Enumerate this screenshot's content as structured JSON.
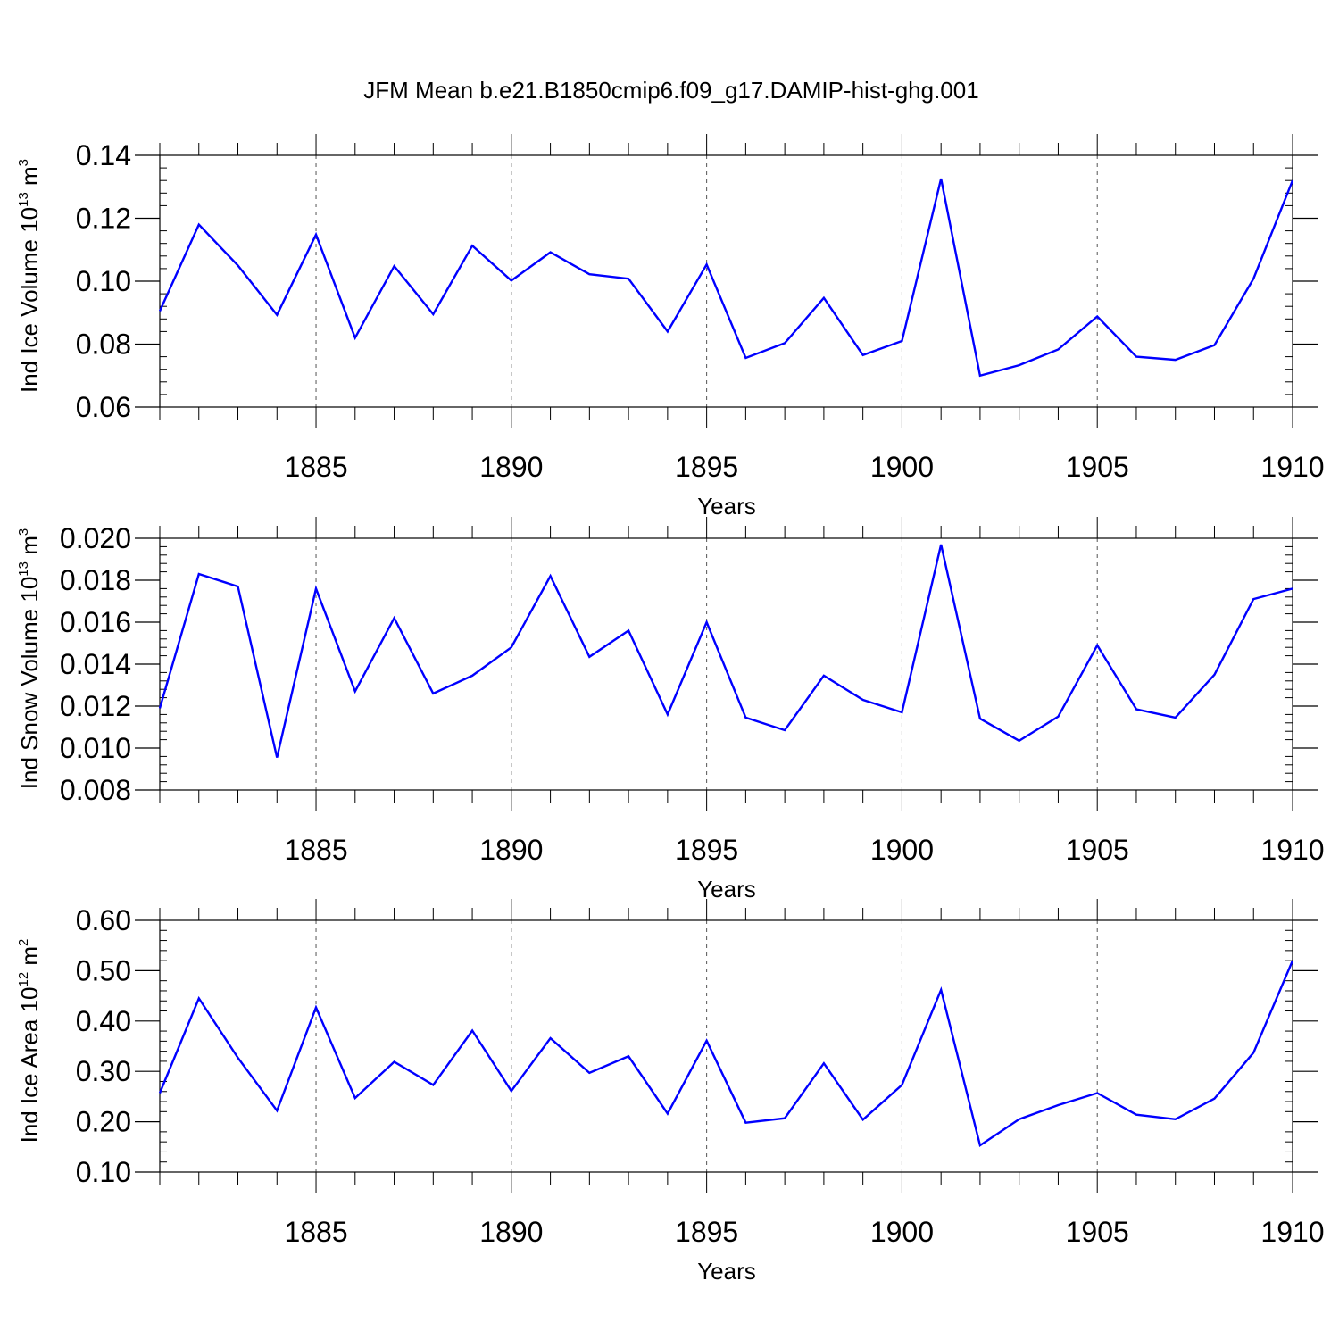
{
  "title": "JFM Mean b.e21.B1850cmip6.f09_g17.DAMIP-hist-ghg.001",
  "colors": {
    "line": "#0000ff",
    "axis": "#000000",
    "grid": "#555555"
  },
  "chart_data": [
    {
      "type": "line",
      "ylabel": {
        "text": "Ind Ice Volume 10",
        "exp": "13",
        "unit": " m",
        "unit_exp": "3"
      },
      "xlabel": "Years",
      "xlim": [
        1881,
        1910
      ],
      "ylim": [
        0.06,
        0.14
      ],
      "yticks": [
        0.06,
        0.08,
        0.1,
        0.12,
        0.14
      ],
      "ytick_labels": [
        "0.06",
        "0.08",
        "0.10",
        "0.12",
        "0.14"
      ],
      "xticks": [
        1885,
        1890,
        1895,
        1900,
        1905,
        1910
      ],
      "xtick_labels": [
        "1885",
        "1890",
        "1895",
        "1900",
        "1905",
        "1910"
      ],
      "series": [
        {
          "name": "Ind Ice Volume",
          "values": [
            [
              1881,
              0.0905
            ],
            [
              1882,
              0.118
            ],
            [
              1883,
              0.105
            ],
            [
              1884,
              0.0893
            ],
            [
              1885,
              0.1148
            ],
            [
              1886,
              0.082
            ],
            [
              1887,
              0.1048
            ],
            [
              1888,
              0.0895
            ],
            [
              1889,
              0.1113
            ],
            [
              1890,
              0.1002
            ],
            [
              1891,
              0.1092
            ],
            [
              1892,
              0.1022
            ],
            [
              1893,
              0.1008
            ],
            [
              1894,
              0.084
            ],
            [
              1895,
              0.1053
            ],
            [
              1896,
              0.0756
            ],
            [
              1897,
              0.0803
            ],
            [
              1898,
              0.0947
            ],
            [
              1899,
              0.0765
            ],
            [
              1900,
              0.081
            ],
            [
              1901,
              0.1326
            ],
            [
              1902,
              0.07
            ],
            [
              1903,
              0.0733
            ],
            [
              1904,
              0.0783
            ],
            [
              1905,
              0.0888
            ],
            [
              1906,
              0.076
            ],
            [
              1907,
              0.075
            ],
            [
              1908,
              0.0797
            ],
            [
              1909,
              0.1008
            ],
            [
              1910,
              0.132
            ]
          ]
        }
      ]
    },
    {
      "type": "line",
      "ylabel": {
        "text": "Ind Snow Volume 10",
        "exp": "13",
        "unit": " m",
        "unit_exp": "3"
      },
      "xlabel": "Years",
      "xlim": [
        1881,
        1910
      ],
      "ylim": [
        0.008,
        0.02
      ],
      "yticks": [
        0.008,
        0.01,
        0.012,
        0.014,
        0.016,
        0.018,
        0.02
      ],
      "ytick_labels": [
        "0.008",
        "0.010",
        "0.012",
        "0.014",
        "0.016",
        "0.018",
        "0.020"
      ],
      "xticks": [
        1885,
        1890,
        1895,
        1900,
        1905,
        1910
      ],
      "xtick_labels": [
        "1885",
        "1890",
        "1895",
        "1900",
        "1905",
        "1910"
      ],
      "series": [
        {
          "name": "Ind Snow Volume",
          "values": [
            [
              1881,
              0.0119
            ],
            [
              1882,
              0.0183
            ],
            [
              1883,
              0.0177
            ],
            [
              1884,
              0.00955
            ],
            [
              1885,
              0.0176
            ],
            [
              1886,
              0.0127
            ],
            [
              1887,
              0.0162
            ],
            [
              1888,
              0.0126
            ],
            [
              1889,
              0.01345
            ],
            [
              1890,
              0.0148
            ],
            [
              1891,
              0.0182
            ],
            [
              1892,
              0.01435
            ],
            [
              1893,
              0.0156
            ],
            [
              1894,
              0.0116
            ],
            [
              1895,
              0.016
            ],
            [
              1896,
              0.01145
            ],
            [
              1897,
              0.01085
            ],
            [
              1898,
              0.01345
            ],
            [
              1899,
              0.0123
            ],
            [
              1900,
              0.0117
            ],
            [
              1901,
              0.0197
            ],
            [
              1902,
              0.0114
            ],
            [
              1903,
              0.01035
            ],
            [
              1904,
              0.0115
            ],
            [
              1905,
              0.0149
            ],
            [
              1906,
              0.01185
            ],
            [
              1907,
              0.01145
            ],
            [
              1908,
              0.0135
            ],
            [
              1909,
              0.0171
            ],
            [
              1910,
              0.0176
            ]
          ]
        }
      ]
    },
    {
      "type": "line",
      "ylabel": {
        "text": "Ind Ice Area 10",
        "exp": "12",
        "unit": " m",
        "unit_exp": "2"
      },
      "xlabel": "Years",
      "xlim": [
        1881,
        1910
      ],
      "ylim": [
        0.1,
        0.6
      ],
      "yticks": [
        0.1,
        0.2,
        0.3,
        0.4,
        0.5,
        0.6
      ],
      "ytick_labels": [
        "0.10",
        "0.20",
        "0.30",
        "0.40",
        "0.50",
        "0.60"
      ],
      "xticks": [
        1885,
        1890,
        1895,
        1900,
        1905,
        1910
      ],
      "xtick_labels": [
        "1885",
        "1890",
        "1895",
        "1900",
        "1905",
        "1910"
      ],
      "series": [
        {
          "name": "Ind Ice Area",
          "values": [
            [
              1881,
              0.257
            ],
            [
              1882,
              0.445
            ],
            [
              1883,
              0.327
            ],
            [
              1884,
              0.222
            ],
            [
              1885,
              0.427
            ],
            [
              1886,
              0.247
            ],
            [
              1887,
              0.319
            ],
            [
              1888,
              0.273
            ],
            [
              1889,
              0.381
            ],
            [
              1890,
              0.261
            ],
            [
              1891,
              0.366
            ],
            [
              1892,
              0.297
            ],
            [
              1893,
              0.33
            ],
            [
              1894,
              0.216
            ],
            [
              1895,
              0.361
            ],
            [
              1896,
              0.198
            ],
            [
              1897,
              0.207
            ],
            [
              1898,
              0.316
            ],
            [
              1899,
              0.204
            ],
            [
              1900,
              0.273
            ],
            [
              1901,
              0.462
            ],
            [
              1902,
              0.153
            ],
            [
              1903,
              0.205
            ],
            [
              1904,
              0.233
            ],
            [
              1905,
              0.257
            ],
            [
              1906,
              0.214
            ],
            [
              1907,
              0.205
            ],
            [
              1908,
              0.246
            ],
            [
              1909,
              0.337
            ],
            [
              1910,
              0.52
            ]
          ]
        }
      ]
    }
  ]
}
